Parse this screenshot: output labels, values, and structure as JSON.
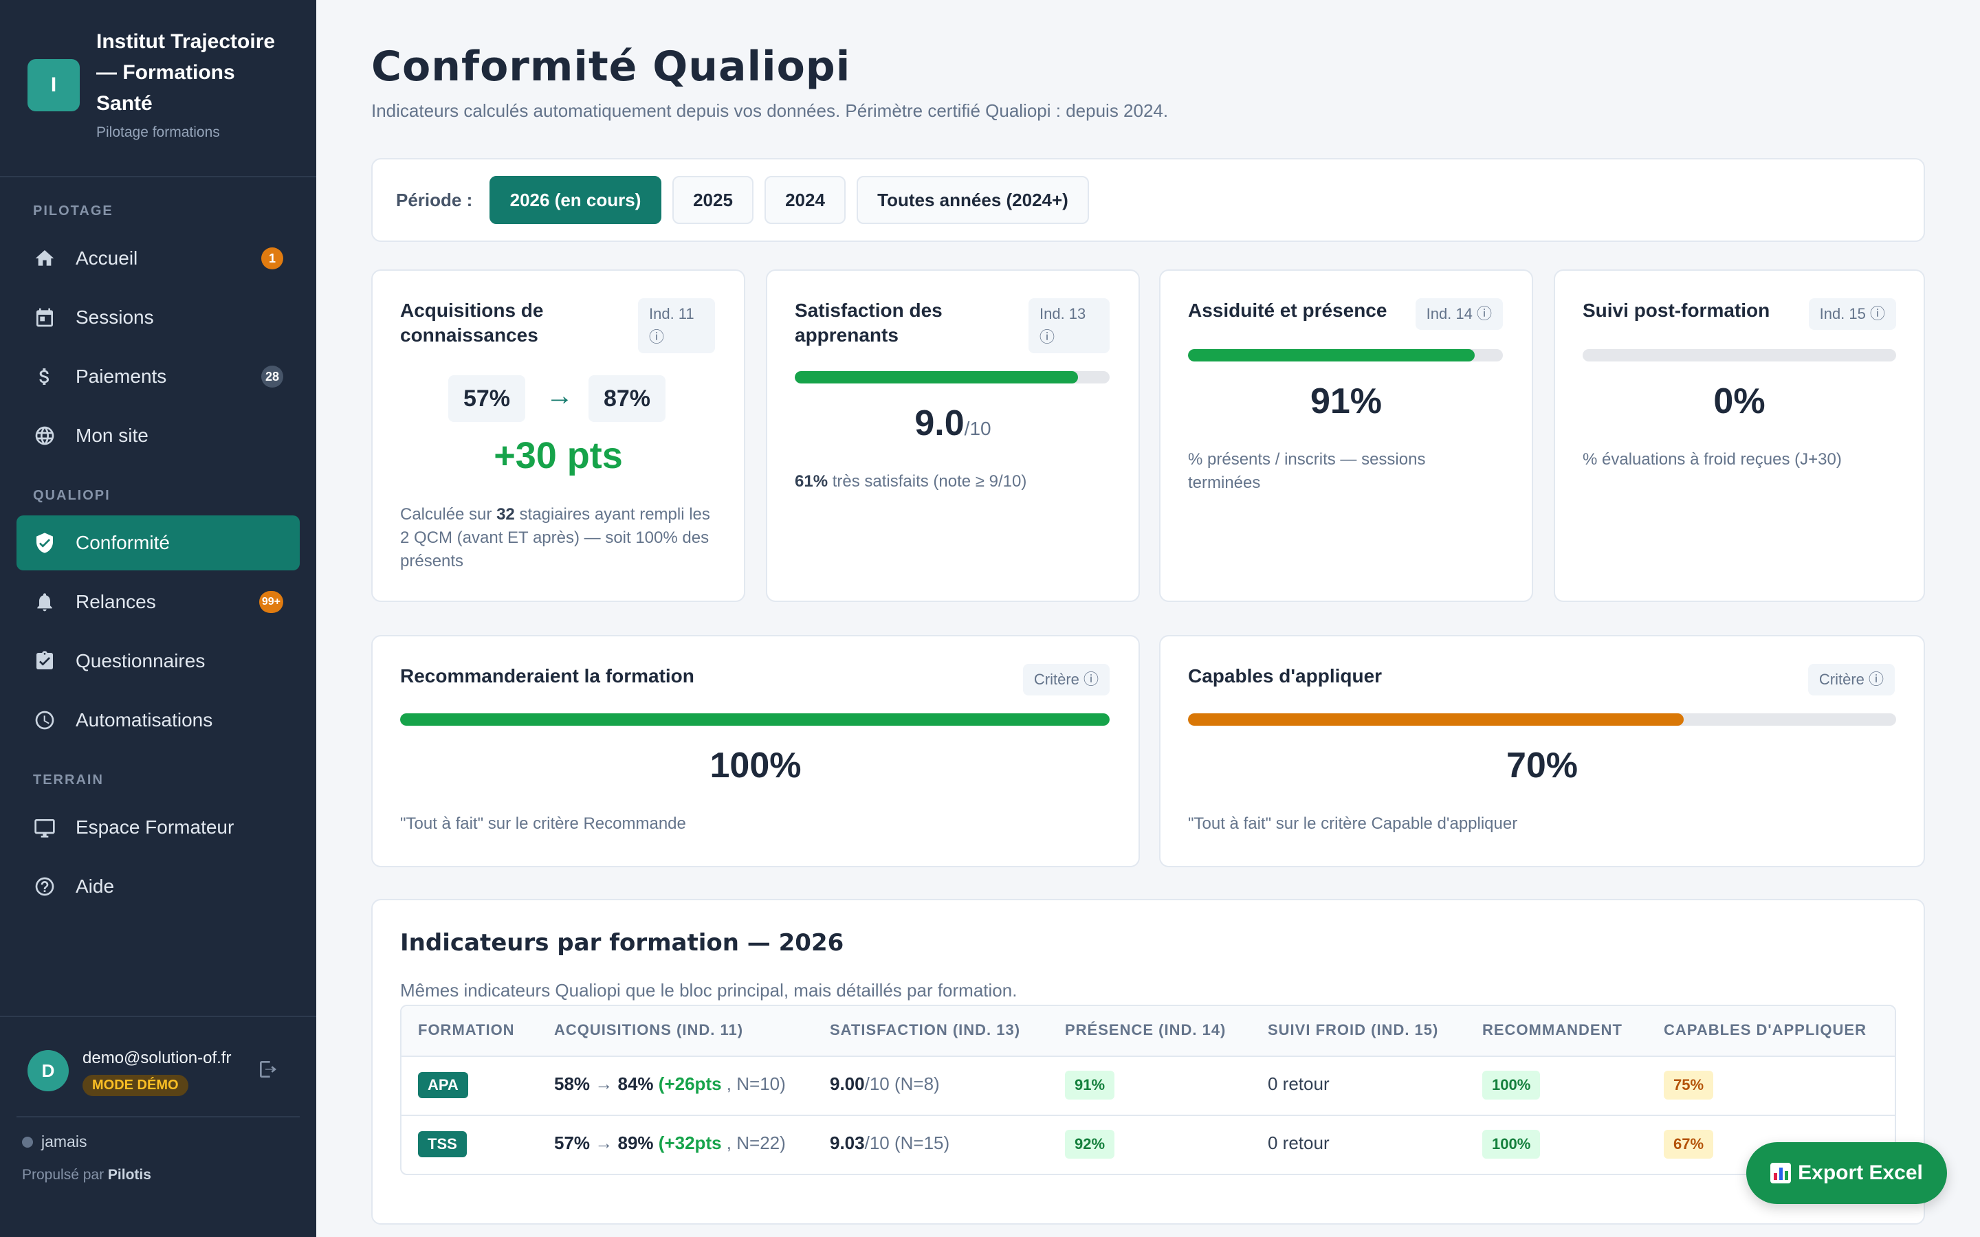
{
  "brand": {
    "logo_letter": "I",
    "name": "Institut Trajectoire — Formations Santé",
    "subtitle": "Pilotage formations"
  },
  "nav": {
    "section_pilotage": "PILOTAGE",
    "section_qualiopi": "QUALIOPI",
    "section_terrain": "TERRAIN",
    "items": [
      {
        "label": "Accueil",
        "icon": "home-icon",
        "badge": "1"
      },
      {
        "label": "Sessions",
        "icon": "calendar-icon"
      },
      {
        "label": "Paiements",
        "icon": "dollar-icon",
        "badge": "28"
      },
      {
        "label": "Mon site",
        "icon": "globe-icon"
      },
      {
        "label": "Conformité",
        "icon": "shield-check-icon",
        "active": true
      },
      {
        "label": "Relances",
        "icon": "bell-icon",
        "badge": "99+"
      },
      {
        "label": "Questionnaires",
        "icon": "clipboard-check-icon"
      },
      {
        "label": "Automatisations",
        "icon": "clock-icon"
      },
      {
        "label": "Espace Formateur",
        "icon": "monitor-icon"
      },
      {
        "label": "Aide",
        "icon": "help-circle-icon"
      }
    ]
  },
  "user": {
    "avatar_letter": "D",
    "email": "demo@solution-of.fr",
    "mode_badge": "MODE DÉMO",
    "sync_status": "jamais",
    "powered_prefix": "Propulsé par",
    "powered_by": "Pilotis"
  },
  "page": {
    "title": "Conformité Qualiopi",
    "subtitle": "Indicateurs calculés automatiquement depuis vos données. Périmètre certifié Qualiopi : depuis 2024."
  },
  "period": {
    "label": "Période :",
    "options": [
      "2026 (en cours)",
      "2025",
      "2024",
      "Toutes années (2024+)"
    ],
    "selected": "2026 (en cours)"
  },
  "kpis": {
    "acquisitions": {
      "title": "Acquisitions de connaissances",
      "tag": "Ind. 11 ⓘ",
      "before": "57%",
      "arrow": "→",
      "after": "87%",
      "gain": "+30 pts",
      "desc_prefix": "Calculée sur",
      "desc_count": "32",
      "desc_suffix": "stagiaires ayant rempli les 2 QCM (avant ET après) — soit 100% des présents"
    },
    "satisfaction": {
      "title": "Satisfaction des apprenants",
      "tag": "Ind. 13 ⓘ",
      "score": "9.0",
      "scale": "/10",
      "progress": 0.9,
      "desc_value": "61%",
      "desc_text": "très satisfaits (note ≥ 9/10)"
    },
    "assiduite": {
      "title": "Assiduité et présence",
      "tag": "Ind. 14 ⓘ",
      "value": "91%",
      "progress": 0.91,
      "desc": "% présents / inscrits — sessions terminées"
    },
    "suivi": {
      "title": "Suivi post-formation",
      "tag": "Ind. 15 ⓘ",
      "value": "0%",
      "progress": 0,
      "desc": "% évaluations à froid reçues (J+30)"
    },
    "recommandent": {
      "title": "Recommanderaient la formation",
      "tag": "Critère ⓘ",
      "value": "100%",
      "progress": 1.0,
      "desc": "\"Tout à fait\" sur le critère Recommande"
    },
    "capables": {
      "title": "Capables d'appliquer",
      "tag": "Critère ⓘ",
      "value": "70%",
      "progress": 0.7,
      "desc": "\"Tout à fait\" sur le critère Capable d'appliquer"
    }
  },
  "colors": {
    "accent": "#137a6c",
    "green": "#16a34a",
    "orange": "#d97706",
    "sidebar": "#1e293b"
  },
  "table": {
    "title": "Indicateurs par formation — 2026",
    "subtitle": "Mêmes indicateurs Qualiopi que le bloc principal, mais détaillés par formation.",
    "headers": [
      "FORMATION",
      "ACQUISITIONS (IND. 11)",
      "SATISFACTION (IND. 13)",
      "PRÉSENCE (IND. 14)",
      "SUIVI FROID (IND. 15)",
      "RECOMMANDENT",
      "CAPABLES D'APPLIQUER"
    ],
    "rows": [
      {
        "code": "APA",
        "acq_before": "58%",
        "acq_after": "84%",
        "acq_gain": "(+26pts",
        "acq_n": ", N=10)",
        "sat": "9.00",
        "sat_rest": "/10 (N=8)",
        "presence": "91%",
        "suivi": "0 retour",
        "recommandent": "100%",
        "capables": "75%"
      },
      {
        "code": "TSS",
        "acq_before": "57%",
        "acq_after": "89%",
        "acq_gain": "(+32pts",
        "acq_n": ", N=22)",
        "sat": "9.03",
        "sat_rest": "/10 (N=15)",
        "presence": "92%",
        "suivi": "0 retour",
        "recommandent": "100%",
        "capables": "67%"
      }
    ]
  },
  "export": {
    "label": "Export Excel",
    "icon": "spreadsheet-chart-icon"
  }
}
